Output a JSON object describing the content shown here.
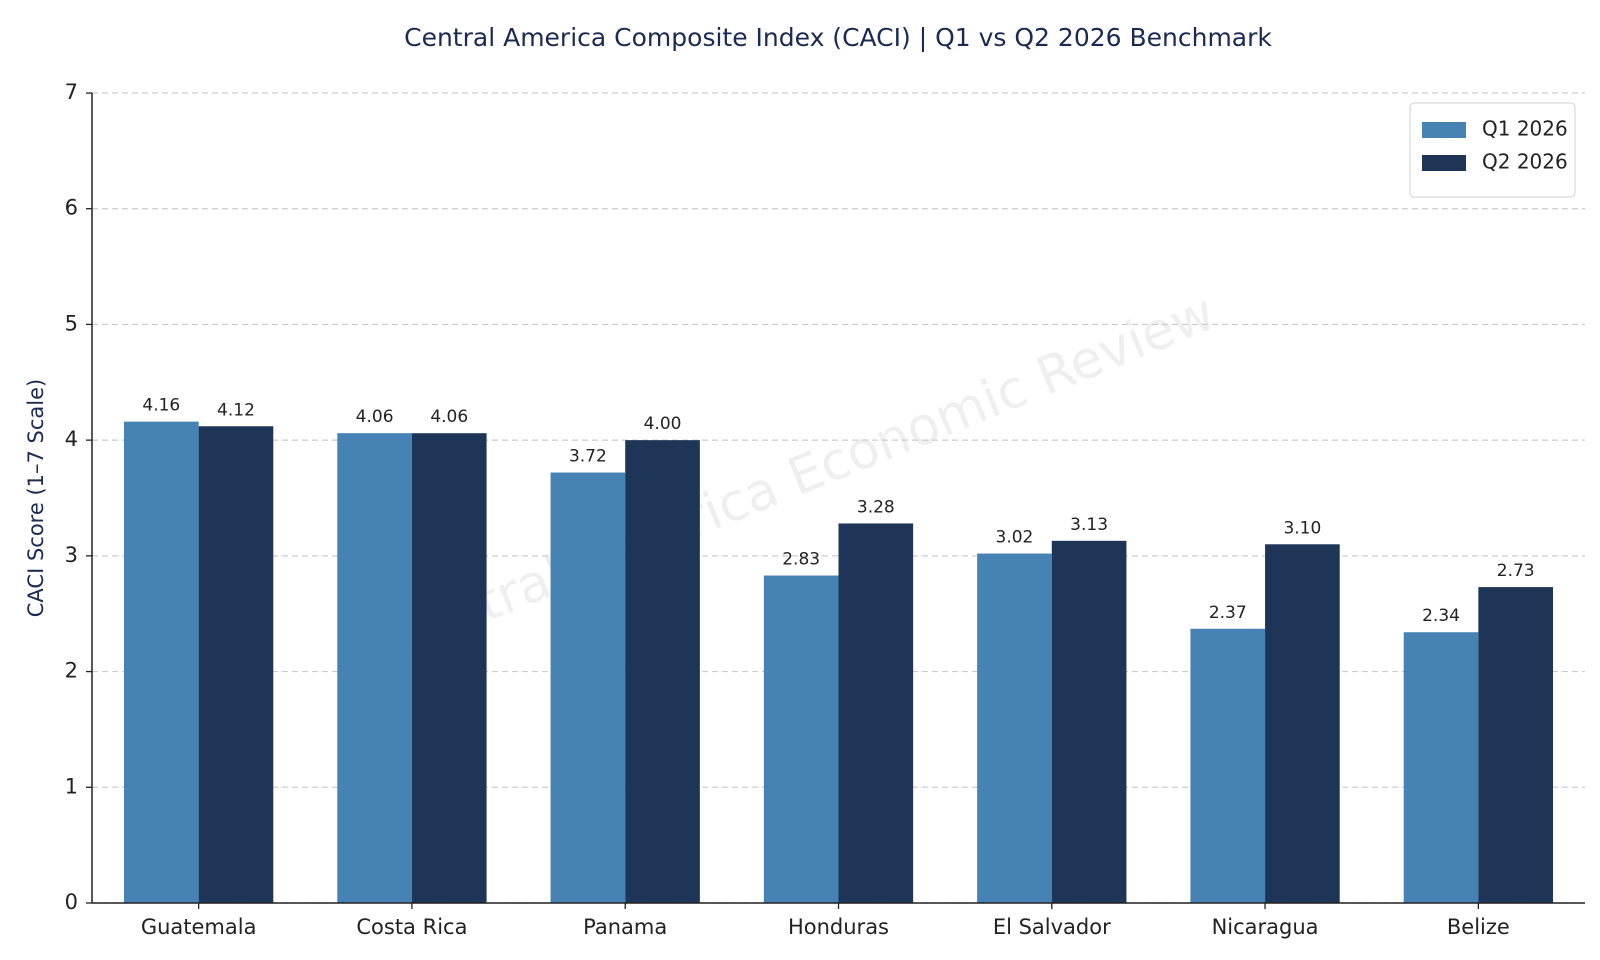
{
  "chart_data": {
    "type": "bar",
    "title": "Central America Composite Index (CACI) | Q1 vs Q2 2026 Benchmark",
    "y_label": "CACI Score (1–7 Scale)",
    "watermark": "Central America Economic Review",
    "categories": [
      "Guatemala",
      "Costa Rica",
      "Panama",
      "Honduras",
      "El Salvador",
      "Nicaragua",
      "Belize"
    ],
    "series": [
      {
        "name": "Q1 2026",
        "color": "#4682b4",
        "values": [
          4.16,
          4.06,
          3.72,
          2.83,
          3.02,
          2.37,
          2.34
        ],
        "value_labels": [
          "4.16",
          "4.06",
          "3.72",
          "2.83",
          "3.02",
          "2.37",
          "2.34"
        ]
      },
      {
        "name": "Q2 2026",
        "color": "#1f3557",
        "values": [
          4.12,
          4.06,
          4.0,
          3.28,
          3.13,
          3.1,
          2.73
        ],
        "value_labels": [
          "4.12",
          "4.06",
          "4.00",
          "3.28",
          "3.13",
          "3.10",
          "2.73"
        ]
      }
    ],
    "ylim": [
      0,
      7
    ],
    "yticks": [
      0,
      1,
      2,
      3,
      4,
      5,
      6,
      7
    ],
    "grid": true,
    "legend": "upper right"
  }
}
